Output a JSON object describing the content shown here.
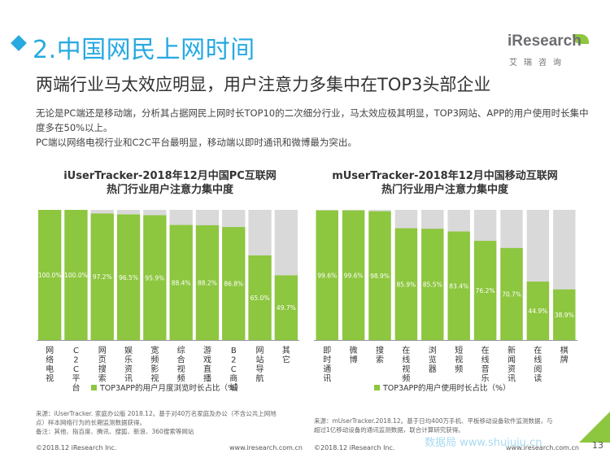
{
  "header": {
    "title": "2.中国网民上网时间",
    "logo_text": "iResearch",
    "logo_subtitle": "艾瑞咨询",
    "subtitle": "两端行业马太效应明显，用户注意力多集中在TOP3头部企业"
  },
  "summary": {
    "line1": "无论是PC端还是移动端，分析其占据网民上网时长TOP10的二次细分行业，马太效应极其明显，TOP3网站、APP的用户使用时长集中度多在50%以上。",
    "line2": "PC端以网络电视行业和C2C平台最明显，移动端以即时通讯和微博最为突出。"
  },
  "colors": {
    "accent": "#27a9e1",
    "bar": "#8dc63f",
    "bar_bg": "#d9d9d9",
    "logo_green": "#8dc63f"
  },
  "chart_data": [
    {
      "type": "bar",
      "title_line1": "iUserTracker-2018年12月中国PC互联网",
      "title_line2": "热门行业用户注意力集中度",
      "categories": [
        "网络电视",
        "C2C平台",
        "网页搜索",
        "娱乐资讯",
        "宽频影视",
        "综合视频",
        "游戏直播",
        "B2C商城",
        "网站导航",
        "其它"
      ],
      "values": [
        100.0,
        100.0,
        97.2,
        96.5,
        95.9,
        88.4,
        88.2,
        86.8,
        65.0,
        49.7
      ],
      "value_labels": [
        "100.0%",
        "100.0%",
        "97.2%",
        "96.5%",
        "95.9%",
        "88.4%",
        "88.2%",
        "86.8%",
        "65.0%",
        "49.7%"
      ],
      "series": [
        {
          "name": "TOP3APP的用户月度浏览时长占比（%）",
          "values": [
            100.0,
            100.0,
            97.2,
            96.5,
            95.9,
            88.4,
            88.2,
            86.8,
            65.0,
            49.7
          ]
        }
      ],
      "ylim": [
        0,
        100
      ],
      "legend_position": "bottom",
      "source_lines": [
        "来源：iUserTracker. 家庭办公版 2018.12。基于对40万名家庭及办公（不含公共上网地",
        "点）样本网络行为的长期监测数据获得。",
        "备注：其他、指百度、腾讯、搜狐、新浪、360搜索等网站"
      ],
      "footer_left": "©2018.12 iResearch Inc.",
      "footer_right": "www.iresearch.com.cn"
    },
    {
      "type": "bar",
      "title_line1": "mUserTracker-2018年12月中国移动互联网",
      "title_line2": "热门行业用户注意力集中度",
      "categories": [
        "即时通讯",
        "微博",
        "搜索",
        "在线视频",
        "浏览器",
        "短视频",
        "在线音乐",
        "新闻资讯",
        "在线阅读",
        "棋牌"
      ],
      "values": [
        99.6,
        99.6,
        98.9,
        85.9,
        85.5,
        83.4,
        76.2,
        70.7,
        44.9,
        38.9
      ],
      "value_labels": [
        "99.6%",
        "99.6%",
        "98.9%",
        "85.9%",
        "85.5%",
        "83.4%",
        "76.2%",
        "70.7%",
        "44.9%",
        "38.9%"
      ],
      "series": [
        {
          "name": "TOP3APP的用户使用时长占比（%）",
          "values": [
            99.6,
            99.6,
            98.9,
            85.9,
            85.5,
            83.4,
            76.2,
            70.7,
            44.9,
            38.9
          ]
        }
      ],
      "ylim": [
        0,
        100
      ],
      "legend_position": "bottom",
      "source_lines": [
        "来源：mUserTracker.2018.12。基于日均400万手机、平板移动设备软件监测数据，与",
        "超过1亿移动设备的通讯监测数据，联合计算研究获得。"
      ],
      "footer_left": "©2018.12 iResearch Inc.",
      "footer_right": "www.iresearch.com.cn"
    }
  ],
  "watermark": "数据局 www.shujuju.cn",
  "page_number": "13"
}
